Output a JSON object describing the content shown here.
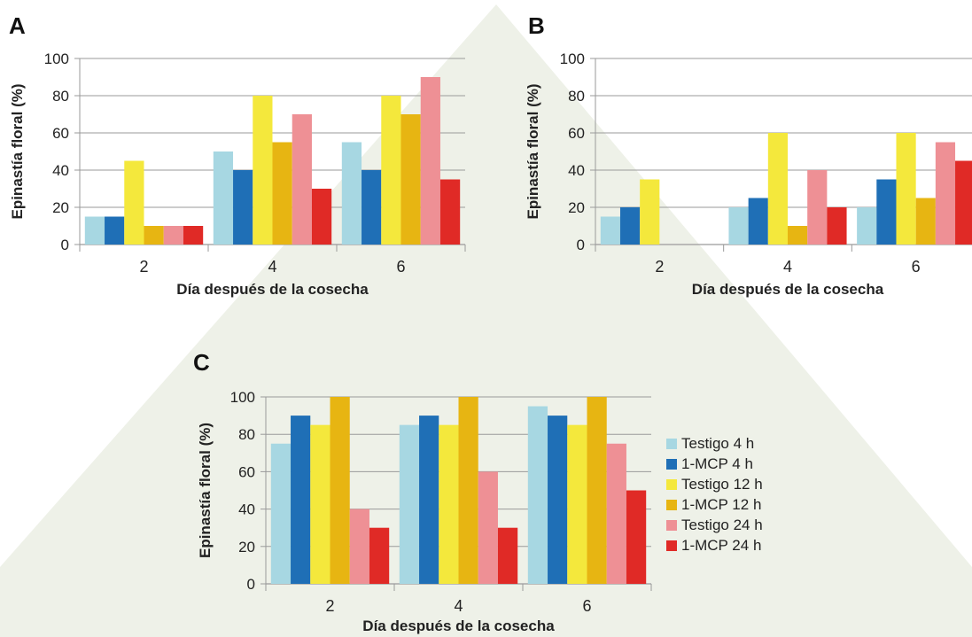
{
  "colors": {
    "background_shape": "#eef1e8",
    "axis": "#9a9a9a",
    "series": [
      "#a7d7e2",
      "#1f6fb6",
      "#f4e83c",
      "#e7b512",
      "#ee9095",
      "#e02a26"
    ]
  },
  "legend": [
    "Testigo 4 h",
    "1-MCP 4 h",
    "Testigo 12 h",
    "1-MCP 12 h",
    "Testigo 24 h",
    "1-MCP 24 h"
  ],
  "chart_data": [
    {
      "type": "bar",
      "panel": "A",
      "categories": [
        "2",
        "4",
        "6"
      ],
      "xlabel": "Día después de la cosecha",
      "ylabel": "Epinastía floral (%)",
      "ylim": [
        0,
        100
      ],
      "yticks": [
        "0",
        "20",
        "40",
        "60",
        "80",
        "100"
      ],
      "series": [
        {
          "name": "Testigo 4 h",
          "values": [
            15,
            50,
            55
          ]
        },
        {
          "name": "1-MCP 4 h",
          "values": [
            15,
            40,
            40
          ]
        },
        {
          "name": "Testigo 12 h",
          "values": [
            45,
            80,
            80
          ]
        },
        {
          "name": "1-MCP 12 h",
          "values": [
            10,
            55,
            70
          ]
        },
        {
          "name": "Testigo 24 h",
          "values": [
            10,
            70,
            90
          ]
        },
        {
          "name": "1-MCP 24 h",
          "values": [
            10,
            30,
            35
          ]
        }
      ]
    },
    {
      "type": "bar",
      "panel": "B",
      "categories": [
        "2",
        "4",
        "6"
      ],
      "xlabel": "Día después de la cosecha",
      "ylabel": "Epinastía floral (%)",
      "ylim": [
        0,
        100
      ],
      "yticks": [
        "0",
        "20",
        "40",
        "60",
        "80",
        "100"
      ],
      "series": [
        {
          "name": "Testigo 4 h",
          "values": [
            15,
            20,
            20
          ]
        },
        {
          "name": "1-MCP 4 h",
          "values": [
            20,
            25,
            35
          ]
        },
        {
          "name": "Testigo 12 h",
          "values": [
            35,
            60,
            60
          ]
        },
        {
          "name": "1-MCP 12 h",
          "values": [
            0,
            10,
            25
          ]
        },
        {
          "name": "Testigo 24 h",
          "values": [
            0,
            40,
            55
          ]
        },
        {
          "name": "1-MCP 24 h",
          "values": [
            0,
            20,
            45
          ]
        }
      ]
    },
    {
      "type": "bar",
      "panel": "C",
      "categories": [
        "2",
        "4",
        "6"
      ],
      "xlabel": "Día después de la cosecha",
      "ylabel": "Epinastía floral (%)",
      "ylim": [
        0,
        100
      ],
      "yticks": [
        "0",
        "20",
        "40",
        "60",
        "80",
        "100"
      ],
      "series": [
        {
          "name": "Testigo 4 h",
          "values": [
            75,
            85,
            95
          ]
        },
        {
          "name": "1-MCP 4 h",
          "values": [
            90,
            90,
            90
          ]
        },
        {
          "name": "Testigo 12 h",
          "values": [
            85,
            85,
            85
          ]
        },
        {
          "name": "1-MCP 12 h",
          "values": [
            100,
            100,
            100
          ]
        },
        {
          "name": "Testigo 24 h",
          "values": [
            40,
            60,
            75
          ]
        },
        {
          "name": "1-MCP 24 h",
          "values": [
            30,
            30,
            50
          ]
        }
      ]
    }
  ]
}
